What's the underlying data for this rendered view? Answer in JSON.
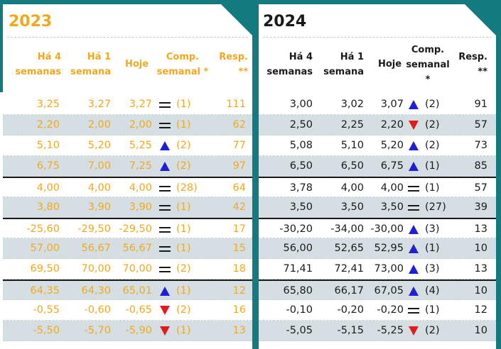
{
  "left": {
    "year": "2023",
    "headers": {
      "weeks4": "Há 4\nsemanas",
      "week1": "Há 1\nsemana",
      "today": "Hoje",
      "comp": "Comp.\nsemanal *",
      "resp": "Resp.\n**"
    },
    "rows": [
      {
        "w4": "3,25",
        "w1": "3,27",
        "today": "3,27",
        "trend": "eq",
        "comp": "(1)",
        "resp": "111"
      },
      {
        "w4": "2,20",
        "w1": "2,00",
        "today": "2,00",
        "trend": "eq",
        "comp": "(1)",
        "resp": "62"
      },
      {
        "w4": "5,10",
        "w1": "5,20",
        "today": "5,25",
        "trend": "up",
        "comp": "(2)",
        "resp": "77"
      },
      {
        "w4": "6,75",
        "w1": "7,00",
        "today": "7,25",
        "trend": "up",
        "comp": "(2)",
        "resp": "97"
      },
      {
        "w4": "4,00",
        "w1": "4,00",
        "today": "4,00",
        "trend": "eq",
        "comp": "(28)",
        "resp": "64"
      },
      {
        "w4": "3,80",
        "w1": "3,90",
        "today": "3,90",
        "trend": "eq",
        "comp": "(1)",
        "resp": "42"
      },
      {
        "w4": "-25,60",
        "w1": "-29,50",
        "today": "-29,50",
        "trend": "eq",
        "comp": "(1)",
        "resp": "17"
      },
      {
        "w4": "57,00",
        "w1": "56,67",
        "today": "56,67",
        "trend": "eq",
        "comp": "(1)",
        "resp": "15"
      },
      {
        "w4": "69,50",
        "w1": "70,00",
        "today": "70,00",
        "trend": "eq",
        "comp": "(2)",
        "resp": "18"
      },
      {
        "w4": "64,35",
        "w1": "64,30",
        "today": "65,01",
        "trend": "up",
        "comp": "(1)",
        "resp": "12"
      },
      {
        "w4": "-0,55",
        "w1": "-0,60",
        "today": "-0,65",
        "trend": "down",
        "comp": "(2)",
        "resp": "16"
      },
      {
        "w4": "-5,50",
        "w1": "-5,70",
        "today": "-5,90",
        "trend": "down",
        "comp": "(1)",
        "resp": "13"
      }
    ]
  },
  "right": {
    "year": "2024",
    "headers": {
      "weeks4": "Há 4\nsemanas",
      "week1": "Há 1\nsemana",
      "today": "Hoje",
      "comp": "Comp.\nsemanal\n*",
      "resp": "Resp.\n**"
    },
    "rows": [
      {
        "w4": "3,00",
        "w1": "3,02",
        "today": "3,07",
        "trend": "up",
        "comp": "(2)",
        "resp": "91"
      },
      {
        "w4": "2,50",
        "w1": "2,25",
        "today": "2,20",
        "trend": "down",
        "comp": "(2)",
        "resp": "57"
      },
      {
        "w4": "5,08",
        "w1": "5,10",
        "today": "5,20",
        "trend": "up",
        "comp": "(2)",
        "resp": "73"
      },
      {
        "w4": "6,50",
        "w1": "6,50",
        "today": "6,75",
        "trend": "up",
        "comp": "(1)",
        "resp": "85"
      },
      {
        "w4": "3,78",
        "w1": "4,00",
        "today": "4,00",
        "trend": "eq",
        "comp": "(1)",
        "resp": "57"
      },
      {
        "w4": "3,50",
        "w1": "3,50",
        "today": "3,50",
        "trend": "eq",
        "comp": "(27)",
        "resp": "39"
      },
      {
        "w4": "-30,20",
        "w1": "-34,00",
        "today": "-30,00",
        "trend": "up",
        "comp": "(3)",
        "resp": "13"
      },
      {
        "w4": "56,00",
        "w1": "52,65",
        "today": "52,95",
        "trend": "up",
        "comp": "(1)",
        "resp": "10"
      },
      {
        "w4": "71,41",
        "w1": "72,41",
        "today": "73,00",
        "trend": "up",
        "comp": "(3)",
        "resp": "13"
      },
      {
        "w4": "65,80",
        "w1": "66,17",
        "today": "67,05",
        "trend": "up",
        "comp": "(4)",
        "resp": "10"
      },
      {
        "w4": "-0,10",
        "w1": "-0,20",
        "today": "-0,20",
        "trend": "eq",
        "comp": "(1)",
        "resp": "12"
      },
      {
        "w4": "-5,05",
        "w1": "-5,15",
        "today": "-5,25",
        "trend": "down",
        "comp": "(2)",
        "resp": "10"
      }
    ]
  },
  "colors": {
    "teal": "#137a80",
    "orange_text": "#f2a81d",
    "stripe": "#d5dfe3",
    "arrow_up": "#1f1fd6",
    "arrow_down": "#e31b1b"
  },
  "icons": {
    "up": "triangle-up-icon",
    "down": "triangle-down-icon",
    "eq": "equals-icon"
  }
}
